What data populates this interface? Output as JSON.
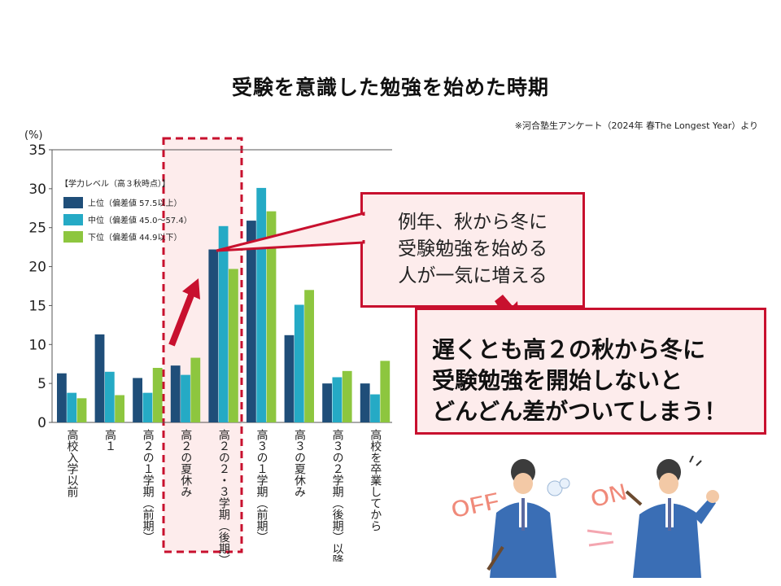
{
  "page": {
    "title": "受験を意識した勉強を始めた時期",
    "source": "※河合塾生アンケート（2024年 春The Longest Year）より"
  },
  "callout_main": {
    "text": "例年、秋から冬に\n受験勉強を始める\n人が一気に増える"
  },
  "callout_conclusion": {
    "text": "遅くとも高２の秋から冬に\n受験勉強を開始しないと\nどんどん差がついてしまう！"
  },
  "illustration": {
    "off_label": "OFF",
    "on_label": "ON"
  },
  "colors": {
    "top": "#1f4e79",
    "middle": "#25aac5",
    "lower": "#8dc63f",
    "accent_red": "#c8102e",
    "highlight_fill": "#fdecec"
  },
  "chart_data": {
    "type": "bar",
    "yunit": "(%)",
    "ylim": [
      0,
      35
    ],
    "yticks": [
      0,
      5,
      10,
      15,
      20,
      25,
      30,
      35
    ],
    "legend_title": "【学力レベル（高３秋時点）】",
    "legend_position": "top-left",
    "grid": false,
    "categories": [
      "高校入学以前",
      "高１",
      "高２の１学期（前期）",
      "高２の夏休み",
      "高２の２・３学期（後期）",
      "高３の１学期（前期）",
      "高３の夏休み",
      "高３の２学期（後期）以降",
      "高校を卒業してから"
    ],
    "series": [
      {
        "name": "上位（偏差値 57.5以上）",
        "values": [
          6.3,
          11.3,
          5.7,
          7.3,
          22.2,
          25.9,
          11.2,
          5.0,
          5.0
        ]
      },
      {
        "name": "中位（偏差値 45.0～57.4）",
        "values": [
          3.8,
          6.5,
          3.8,
          6.1,
          25.2,
          30.1,
          15.1,
          5.8,
          3.6
        ]
      },
      {
        "name": "下位（偏差値 44.9以下）",
        "values": [
          3.1,
          3.5,
          7.0,
          8.3,
          19.7,
          27.1,
          17.0,
          6.6,
          7.9
        ]
      }
    ],
    "highlighted_categories": [
      3,
      4
    ]
  }
}
